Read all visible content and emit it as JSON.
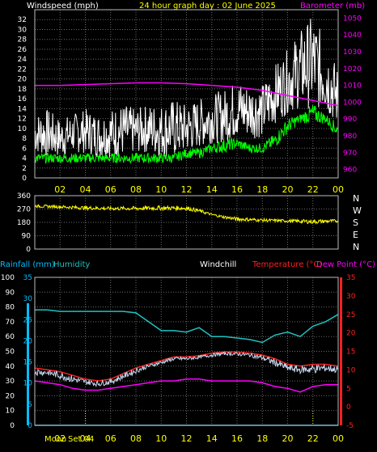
{
  "colors": {
    "background": "#000000",
    "grid": "#6a6a6a",
    "border": "#bcbcbc",
    "axis_label": "#ffffff",
    "time_label": "#ffff00",
    "wind_speed": "#ffffff",
    "wind_gust": "#ffffff",
    "wind_avg": "#00ff00",
    "barometer": "#ff00ff",
    "direction": "#ffff00",
    "rainfall": "#00bfff",
    "humidity": "#20c0c0",
    "windchill": "#c8d8f0",
    "temperature": "#ff2020",
    "dewpoint": "#ff00ff",
    "rain_axis": "#00bfff",
    "temp_axis": "#ff2020"
  },
  "chart_data": [
    {
      "type": "line",
      "title": "24 hour graph day : 02 June 2025",
      "ylabel_left": "Windspeed (mph)",
      "ylabel_right": "Barometer (mb)",
      "xlim": [
        0,
        24
      ],
      "x_ticks": [
        "02",
        "04",
        "06",
        "08",
        "10",
        "12",
        "14",
        "16",
        "18",
        "20",
        "22",
        "00"
      ],
      "ylim_left": [
        0,
        34
      ],
      "y_ticks_left": [
        "0",
        "2",
        "4",
        "6",
        "8",
        "10",
        "12",
        "14",
        "16",
        "18",
        "20",
        "22",
        "24",
        "26",
        "28",
        "30",
        "32"
      ],
      "ylim_right": [
        955,
        1055
      ],
      "y_ticks_right": [
        "960",
        "970",
        "980",
        "990",
        "1000",
        "1010",
        "1020",
        "1030",
        "1040",
        "1050"
      ],
      "grid": true,
      "series": [
        {
          "name": "Windspeed (mph)",
          "axis": "left",
          "color_key": "wind_gust",
          "style": "noisy",
          "x": [
            0,
            1,
            2,
            3,
            4,
            5,
            6,
            7,
            8,
            9,
            10,
            11,
            12,
            13,
            14,
            15,
            16,
            17,
            18,
            19,
            20,
            21,
            22,
            23,
            24
          ],
          "low": [
            5,
            4,
            4,
            5,
            5,
            4,
            4,
            4,
            5,
            5,
            4,
            4,
            5,
            6,
            7,
            7,
            8,
            8,
            8,
            11,
            13,
            14,
            14,
            13,
            10
          ],
          "high": [
            13,
            14,
            12,
            13,
            14,
            13,
            14,
            15,
            14,
            15,
            15,
            16,
            15,
            16,
            17,
            18,
            20,
            19,
            19,
            23,
            26,
            30,
            33,
            28,
            22
          ]
        },
        {
          "name": "Average windspeed",
          "axis": "left",
          "color_key": "wind_avg",
          "style": "noisy",
          "x": [
            0,
            1,
            2,
            3,
            4,
            5,
            6,
            7,
            8,
            9,
            10,
            11,
            12,
            13,
            14,
            15,
            16,
            17,
            18,
            19,
            20,
            21,
            22,
            23,
            24
          ],
          "low": [
            3,
            3,
            3,
            3,
            3,
            3,
            3,
            3,
            3,
            3,
            3,
            3,
            4,
            4,
            5,
            5,
            6,
            5,
            5,
            6,
            9,
            11,
            11,
            11,
            8
          ],
          "high": [
            5,
            5,
            5,
            5,
            5,
            5,
            5,
            5,
            5,
            5,
            5,
            5,
            6,
            6,
            7,
            8,
            8,
            7,
            7,
            9,
            12,
            13,
            15,
            13,
            11
          ]
        },
        {
          "name": "Barometer (mb)",
          "axis": "right",
          "color_key": "barometer",
          "style": "line",
          "x": [
            0,
            2,
            4,
            6,
            8,
            10,
            12,
            14,
            16,
            18,
            20,
            22,
            24
          ],
          "y": [
            1010,
            1010,
            1010.5,
            1011,
            1011.5,
            1011.5,
            1011,
            1010,
            1009,
            1007,
            1004,
            1001,
            998
          ]
        }
      ]
    },
    {
      "type": "line",
      "title": "",
      "xlim": [
        0,
        24
      ],
      "ylim": [
        0,
        360
      ],
      "y_ticks": [
        "0",
        "90",
        "180",
        "270",
        "360"
      ],
      "compass": [
        "N",
        "W",
        "S",
        "E",
        "N"
      ],
      "grid": true,
      "series": [
        {
          "name": "Wind direction",
          "color_key": "direction",
          "style": "noisy",
          "x": [
            0,
            2,
            4,
            6,
            8,
            10,
            12,
            13,
            14,
            15,
            16,
            18,
            20,
            22,
            24
          ],
          "low": [
            280,
            275,
            265,
            262,
            260,
            262,
            262,
            245,
            225,
            205,
            190,
            185,
            180,
            170,
            180
          ],
          "high": [
            300,
            295,
            290,
            285,
            288,
            292,
            290,
            270,
            240,
            225,
            215,
            205,
            200,
            200,
            200
          ]
        }
      ]
    },
    {
      "type": "line",
      "title": "",
      "ylabel_rain": "Rainfall (mm)",
      "ylabel_humidity": "Humidity",
      "ylabel_windchill": "Windchill",
      "ylabel_temperature": "Temperature (°C)",
      "ylabel_dewpoint": "Dew Point (°C)",
      "xlim": [
        0,
        24
      ],
      "x_ticks": [
        "02",
        "04",
        "06",
        "08",
        "10",
        "12",
        "14",
        "16",
        "18",
        "20",
        "22",
        "00"
      ],
      "ylim_humidity": [
        0,
        100
      ],
      "y_ticks_humidity": [
        "0",
        "10",
        "20",
        "30",
        "40",
        "50",
        "60",
        "70",
        "80",
        "90",
        "100"
      ],
      "ylim_rain": [
        0,
        35
      ],
      "y_ticks_rain": [
        "0",
        "5",
        "10",
        "15",
        "20",
        "25",
        "30",
        "35"
      ],
      "ylim_temp": [
        -5,
        35
      ],
      "y_ticks_temp": [
        "-5",
        "0",
        "5",
        "10",
        "15",
        "20",
        "25",
        "30",
        "35"
      ],
      "moon_label": "Moon",
      "moonset_label": "Set 04",
      "moonset_hour": 4,
      "moonrise_hour": 22,
      "grid": true,
      "series": [
        {
          "name": "Humidity",
          "axis": "humidity",
          "color_key": "humidity",
          "style": "line",
          "x": [
            0,
            1,
            2,
            3,
            4,
            5,
            6,
            7,
            8,
            9,
            10,
            11,
            12,
            13,
            14,
            15,
            16,
            17,
            18,
            19,
            20,
            21,
            22,
            23,
            24
          ],
          "y": [
            78,
            78,
            77,
            77,
            77,
            77,
            77,
            77,
            76,
            70,
            64,
            64,
            63,
            66,
            60,
            60,
            59,
            58,
            56,
            61,
            63,
            60,
            67,
            70,
            75
          ]
        },
        {
          "name": "Temperature (°C)",
          "axis": "temp",
          "color_key": "temperature",
          "style": "line",
          "x": [
            0,
            1,
            2,
            3,
            4,
            5,
            6,
            7,
            8,
            9,
            10,
            11,
            12,
            13,
            14,
            15,
            16,
            17,
            18,
            19,
            20,
            21,
            22,
            23,
            24
          ],
          "y": [
            10.5,
            10,
            9.5,
            8.5,
            7.5,
            7,
            7.5,
            9,
            10.5,
            11.5,
            12.5,
            13.5,
            13.5,
            13.8,
            14.5,
            14.8,
            14.8,
            14.5,
            14,
            13,
            11.5,
            11,
            11.5,
            11.5,
            11
          ]
        },
        {
          "name": "Windchill",
          "axis": "temp",
          "color_key": "windchill",
          "style": "noisy",
          "x": [
            0,
            1,
            2,
            3,
            4,
            5,
            6,
            7,
            8,
            9,
            10,
            11,
            12,
            13,
            14,
            15,
            16,
            17,
            18,
            19,
            20,
            21,
            22,
            23,
            24
          ],
          "low": [
            8.5,
            8.5,
            7.5,
            6.5,
            6,
            5.5,
            6,
            7.5,
            9,
            10.5,
            11.5,
            12.5,
            12.5,
            13,
            13.5,
            14,
            13.8,
            13.5,
            12.5,
            11,
            9.5,
            9,
            9,
            9.5,
            9
          ],
          "high": [
            10.5,
            10,
            9.5,
            8.5,
            7.5,
            7,
            7.5,
            9,
            10.5,
            11.5,
            12.5,
            13.5,
            13.5,
            13.8,
            14.5,
            14.8,
            14.8,
            14.5,
            14,
            13,
            11.5,
            11,
            11.5,
            11.5,
            11
          ]
        },
        {
          "name": "Dew Point (°C)",
          "axis": "temp",
          "color_key": "dewpoint",
          "style": "line",
          "x": [
            0,
            1,
            2,
            3,
            4,
            5,
            6,
            7,
            8,
            9,
            10,
            11,
            12,
            13,
            14,
            15,
            16,
            17,
            18,
            19,
            20,
            21,
            22,
            23,
            24
          ],
          "y": [
            7,
            6.5,
            6,
            5,
            4.5,
            4.5,
            5,
            5.5,
            6,
            6.5,
            7,
            7,
            7.5,
            7.5,
            7,
            7,
            7,
            7,
            6.5,
            5.5,
            5,
            4,
            5.5,
            6,
            6
          ]
        },
        {
          "name": "Rainfall (mm)",
          "axis": "rain",
          "color_key": "rainfall",
          "style": "line",
          "x": [
            0,
            24
          ],
          "y": [
            0,
            0
          ]
        }
      ]
    }
  ]
}
